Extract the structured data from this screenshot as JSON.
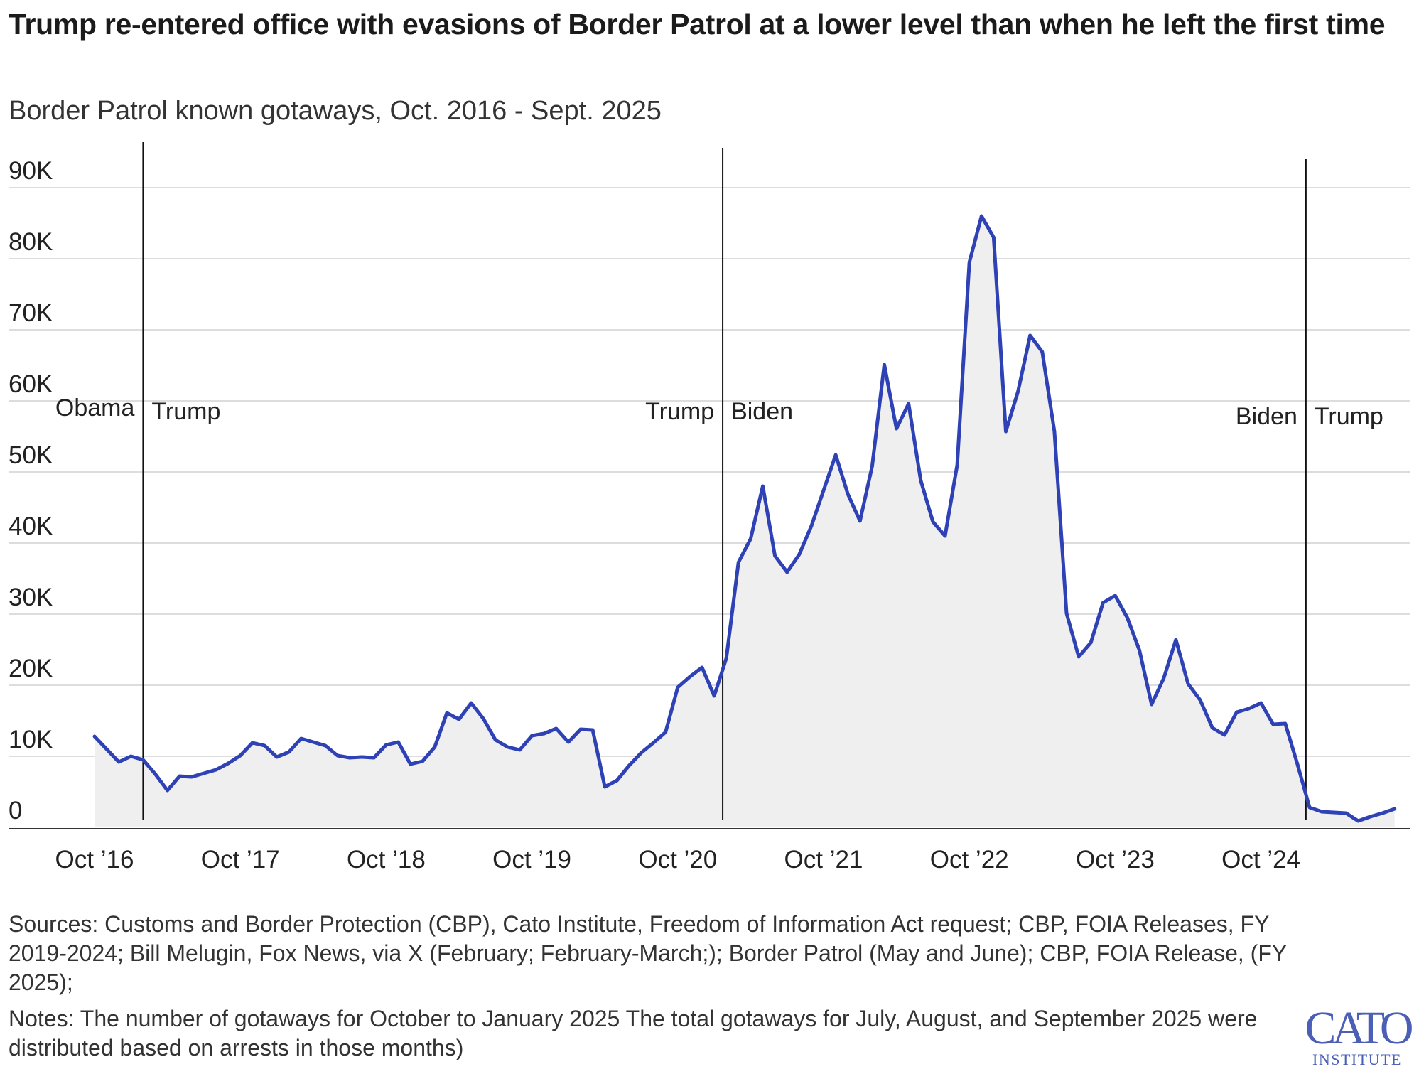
{
  "title": "Trump re-entered office with evasions of Border Patrol at a lower level than when he left the first time",
  "subtitle": "Border Patrol known gotaways, Oct. 2016 - Sept. 2025",
  "sources": "Sources: Customs and Border Protection (CBP), Cato Institute, Freedom of Information Act request; CBP, FOIA Releases, FY 2019-2024; Bill Melugin, Fox News, via X (February; February-March;); Border Patrol (May and June); CBP, FOIA Release, (FY 2025);",
  "notes": "Notes: The number of gotaways for October to January 2025 The total gotaways for July, August, and September 2025 were distributed based on arrests in those months)",
  "logo": {
    "text": "CATO",
    "subtext": "INSTITUTE",
    "color": "#4a5fb5"
  },
  "chart_data": {
    "type": "area",
    "title": "",
    "xlabel": "",
    "ylabel": "",
    "x_start": "Oct 2016",
    "x_end": "Sept. 2025",
    "ylim": [
      0,
      95000
    ],
    "yticks": [
      0,
      10000,
      20000,
      30000,
      40000,
      50000,
      60000,
      70000,
      80000,
      90000
    ],
    "ytick_labels": [
      "0",
      "10K",
      "20K",
      "30K",
      "40K",
      "50K",
      "60K",
      "70K",
      "80K",
      "90K"
    ],
    "grid": true,
    "xtick_labels": [
      "Oct ’16",
      "Oct ’17",
      "Oct ’18",
      "Oct ’19",
      "Oct ’20",
      "Oct ’21",
      "Oct ’22",
      "Oct ’23",
      "Oct ’24"
    ],
    "xtick_index": [
      0,
      12,
      24,
      36,
      48,
      60,
      72,
      84,
      96
    ],
    "line_color": "#2f42b5",
    "fill_color": "#efeff0",
    "series": [
      {
        "values": [
          12800,
          11000,
          9200,
          10000,
          9500,
          7500,
          5200,
          7200,
          7100,
          7600,
          8100,
          9000,
          10100,
          11900,
          11500,
          9900,
          10600,
          12500,
          12000,
          11500,
          10100,
          9800,
          9900,
          9800,
          11600,
          12000,
          8900,
          9300,
          11300,
          16100,
          15200,
          17500,
          15300,
          12300,
          11300,
          10900,
          12900,
          13200,
          13900,
          12000,
          13800,
          13700,
          5700,
          6600,
          8700,
          10500,
          11900,
          13400,
          19700,
          21200,
          22500,
          18500,
          23800,
          37300,
          40600,
          48000,
          38200,
          35900,
          38400,
          42400,
          47400,
          52400,
          46900,
          43100,
          50800,
          65100,
          56100,
          59600,
          48800,
          43000,
          41000,
          51000,
          79500,
          86000,
          83000,
          55700,
          61300,
          69200,
          66900,
          55700,
          30100,
          24000,
          26000,
          31600,
          32600,
          29500,
          24900,
          17300,
          21000,
          26400,
          20200,
          17900,
          14000,
          13000,
          16200,
          16700,
          17500,
          14500,
          14600,
          8900,
          2800,
          2200,
          2100,
          2000,
          900,
          1500,
          2000,
          2600
        ]
      }
    ],
    "annotations": [
      {
        "index": 4,
        "left": "Obama",
        "right": "Trump"
      },
      {
        "index": 51.7,
        "left": "Trump",
        "right": "Biden"
      },
      {
        "index": 99.7,
        "left": "Biden",
        "right": "Trump"
      }
    ]
  }
}
